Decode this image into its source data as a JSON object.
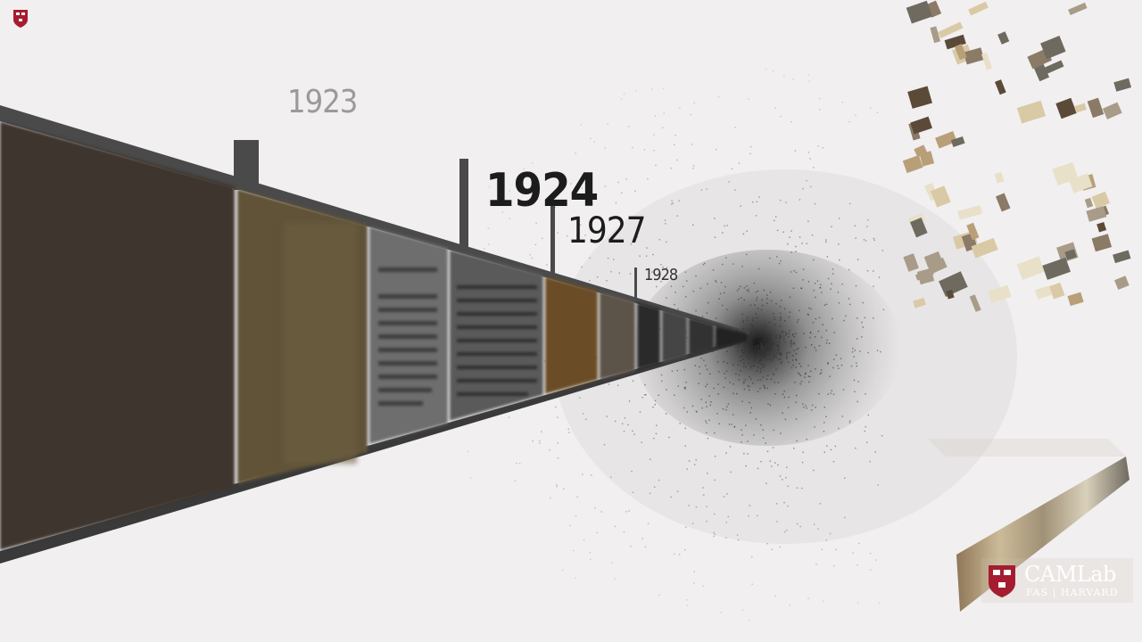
{
  "timeline": {
    "years": [
      {
        "label": "1923"
      },
      {
        "label": "1924"
      },
      {
        "label": "1927"
      },
      {
        "label": "1928"
      }
    ]
  },
  "branding": {
    "name": "CAMLab",
    "subtitle": "FAS | HARVARD"
  },
  "colors": {
    "background": "#f1eff0",
    "crest": "#a51c30",
    "wall": "#3a3a3a"
  }
}
